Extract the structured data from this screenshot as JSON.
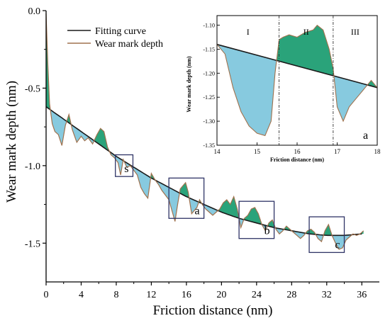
{
  "chart_data": {
    "type": "line",
    "title": "",
    "xlabel": "Friction distance (nm)",
    "ylabel": "Wear mark depth (nm)",
    "xlim": [
      0,
      38
    ],
    "ylim": [
      -1.75,
      0
    ],
    "xticks": [
      0,
      4,
      8,
      12,
      16,
      20,
      24,
      28,
      32,
      36
    ],
    "yticks": [
      0.0,
      -0.5,
      -1.0,
      -1.5
    ],
    "xtick_labels": [
      "0",
      "4",
      "8",
      "12",
      "16",
      "20",
      "24",
      "28",
      "32",
      "36"
    ],
    "ytick_labels": [
      "0.0",
      "-0.5",
      "-1.0",
      "-1.5"
    ],
    "legend": {
      "placement": "top-left",
      "entries": [
        "Fitting curve",
        "Wear mark depth"
      ]
    },
    "colors": {
      "fitting_curve": "#1a1a1a",
      "wear_line": "#a0724e",
      "fill_below": "#87cadf",
      "fill_above": "#2aa37a",
      "box": "#2f3466"
    },
    "series": [
      {
        "name": "Fitting curve",
        "x": [
          0,
          2,
          4,
          6,
          8,
          10,
          12,
          14,
          16,
          18,
          20,
          22,
          24,
          26,
          28,
          30,
          32,
          34,
          36
        ],
        "y": [
          -0.62,
          -0.7,
          -0.78,
          -0.86,
          -0.94,
          -1.01,
          -1.08,
          -1.14,
          -1.2,
          -1.25,
          -1.3,
          -1.34,
          -1.37,
          -1.4,
          -1.42,
          -1.44,
          -1.45,
          -1.45,
          -1.44
        ]
      },
      {
        "name": "Wear mark depth",
        "x": [
          0,
          0.2,
          0.4,
          0.7,
          1.0,
          1.4,
          1.8,
          2.2,
          2.6,
          3.0,
          3.5,
          4.0,
          4.4,
          4.8,
          5.3,
          5.8,
          6.2,
          6.6,
          7.0,
          7.4,
          7.8,
          8.2,
          8.5,
          8.8,
          9.2,
          9.6,
          10.0,
          10.4,
          10.8,
          11.2,
          11.6,
          12.0,
          12.4,
          12.8,
          13.2,
          13.6,
          14.0,
          14.4,
          14.7,
          15.0,
          15.3,
          15.6,
          15.9,
          16.2,
          16.6,
          16.9,
          17.2,
          17.5,
          17.8,
          18.2,
          18.6,
          19.0,
          19.4,
          19.8,
          20.2,
          20.6,
          21.0,
          21.4,
          21.8,
          22.2,
          22.6,
          23.0,
          23.4,
          23.8,
          24.2,
          24.6,
          25.0,
          25.4,
          25.8,
          26.2,
          26.6,
          27.0,
          27.4,
          27.8,
          28.2,
          28.6,
          29.0,
          29.4,
          29.8,
          30.2,
          30.6,
          31.0,
          31.4,
          31.8,
          32.2,
          32.6,
          33.0,
          33.4,
          33.8,
          34.2,
          34.6,
          35.0,
          35.4,
          35.8,
          36.2
        ],
        "y": [
          -0.02,
          -0.35,
          -0.6,
          -0.73,
          -0.78,
          -0.8,
          -0.87,
          -0.74,
          -0.67,
          -0.77,
          -0.85,
          -0.81,
          -0.84,
          -0.82,
          -0.86,
          -0.8,
          -0.76,
          -0.78,
          -0.88,
          -0.93,
          -0.95,
          -0.98,
          -1.06,
          -0.96,
          -1.01,
          -1.0,
          -1.03,
          -1.06,
          -1.14,
          -1.18,
          -1.21,
          -1.05,
          -1.09,
          -1.12,
          -1.16,
          -1.19,
          -1.22,
          -1.3,
          -1.36,
          -1.25,
          -1.15,
          -1.13,
          -1.11,
          -1.17,
          -1.31,
          -1.29,
          -1.27,
          -1.22,
          -1.25,
          -1.28,
          -1.3,
          -1.32,
          -1.3,
          -1.28,
          -1.24,
          -1.22,
          -1.25,
          -1.2,
          -1.28,
          -1.4,
          -1.34,
          -1.32,
          -1.28,
          -1.27,
          -1.31,
          -1.38,
          -1.42,
          -1.37,
          -1.35,
          -1.41,
          -1.44,
          -1.42,
          -1.39,
          -1.41,
          -1.43,
          -1.45,
          -1.47,
          -1.45,
          -1.42,
          -1.41,
          -1.43,
          -1.47,
          -1.49,
          -1.42,
          -1.38,
          -1.45,
          -1.5,
          -1.54,
          -1.53,
          -1.48,
          -1.46,
          -1.44,
          -1.45,
          -1.44,
          -1.42
        ]
      }
    ],
    "region_boxes": [
      {
        "label": "s",
        "x": [
          7.9,
          9.9
        ],
        "y": [
          -0.93,
          -1.07
        ]
      },
      {
        "label": "a",
        "x": [
          14.0,
          18.0
        ],
        "y": [
          -1.08,
          -1.34
        ]
      },
      {
        "label": "b",
        "x": [
          22.0,
          26.0
        ],
        "y": [
          -1.23,
          -1.47
        ]
      },
      {
        "label": "c",
        "x": [
          30.0,
          34.0
        ],
        "y": [
          -1.33,
          -1.56
        ]
      }
    ],
    "inset": {
      "label": "a",
      "xlabel": "Friction distance (nm)",
      "ylabel": "Wear mark depth (nm)",
      "xlim": [
        14,
        18
      ],
      "ylim": [
        -1.35,
        -1.08
      ],
      "xticks": [
        14,
        15,
        16,
        17,
        18
      ],
      "yticks": [
        -1.1,
        -1.15,
        -1.2,
        -1.25,
        -1.3,
        -1.35
      ],
      "xtick_labels": [
        "14",
        "15",
        "16",
        "17",
        "18"
      ],
      "ytick_labels": [
        "-1.10",
        "-1.15",
        "-1.20",
        "-1.25",
        "-1.30",
        "-1.35"
      ],
      "regions": [
        {
          "label": "I",
          "x_end": 15.55
        },
        {
          "label": "II",
          "x_end": 16.9
        },
        {
          "label": "III",
          "x_end": 18
        }
      ],
      "fitting_curve": {
        "x": [
          14,
          18
        ],
        "y": [
          -1.14,
          -1.23
        ]
      },
      "wear_mark_depth": {
        "x": [
          14.0,
          14.2,
          14.4,
          14.6,
          14.8,
          15.0,
          15.2,
          15.35,
          15.45,
          15.55,
          15.65,
          15.8,
          16.0,
          16.2,
          16.4,
          16.5,
          16.65,
          16.8,
          16.9,
          17.0,
          17.15,
          17.3,
          17.5,
          17.7,
          17.85,
          18.0
        ],
        "y": [
          -1.14,
          -1.16,
          -1.23,
          -1.28,
          -1.31,
          -1.325,
          -1.33,
          -1.3,
          -1.2,
          -1.13,
          -1.125,
          -1.12,
          -1.125,
          -1.115,
          -1.11,
          -1.1,
          -1.11,
          -1.15,
          -1.19,
          -1.27,
          -1.3,
          -1.27,
          -1.25,
          -1.23,
          -1.215,
          -1.23
        ]
      }
    }
  }
}
